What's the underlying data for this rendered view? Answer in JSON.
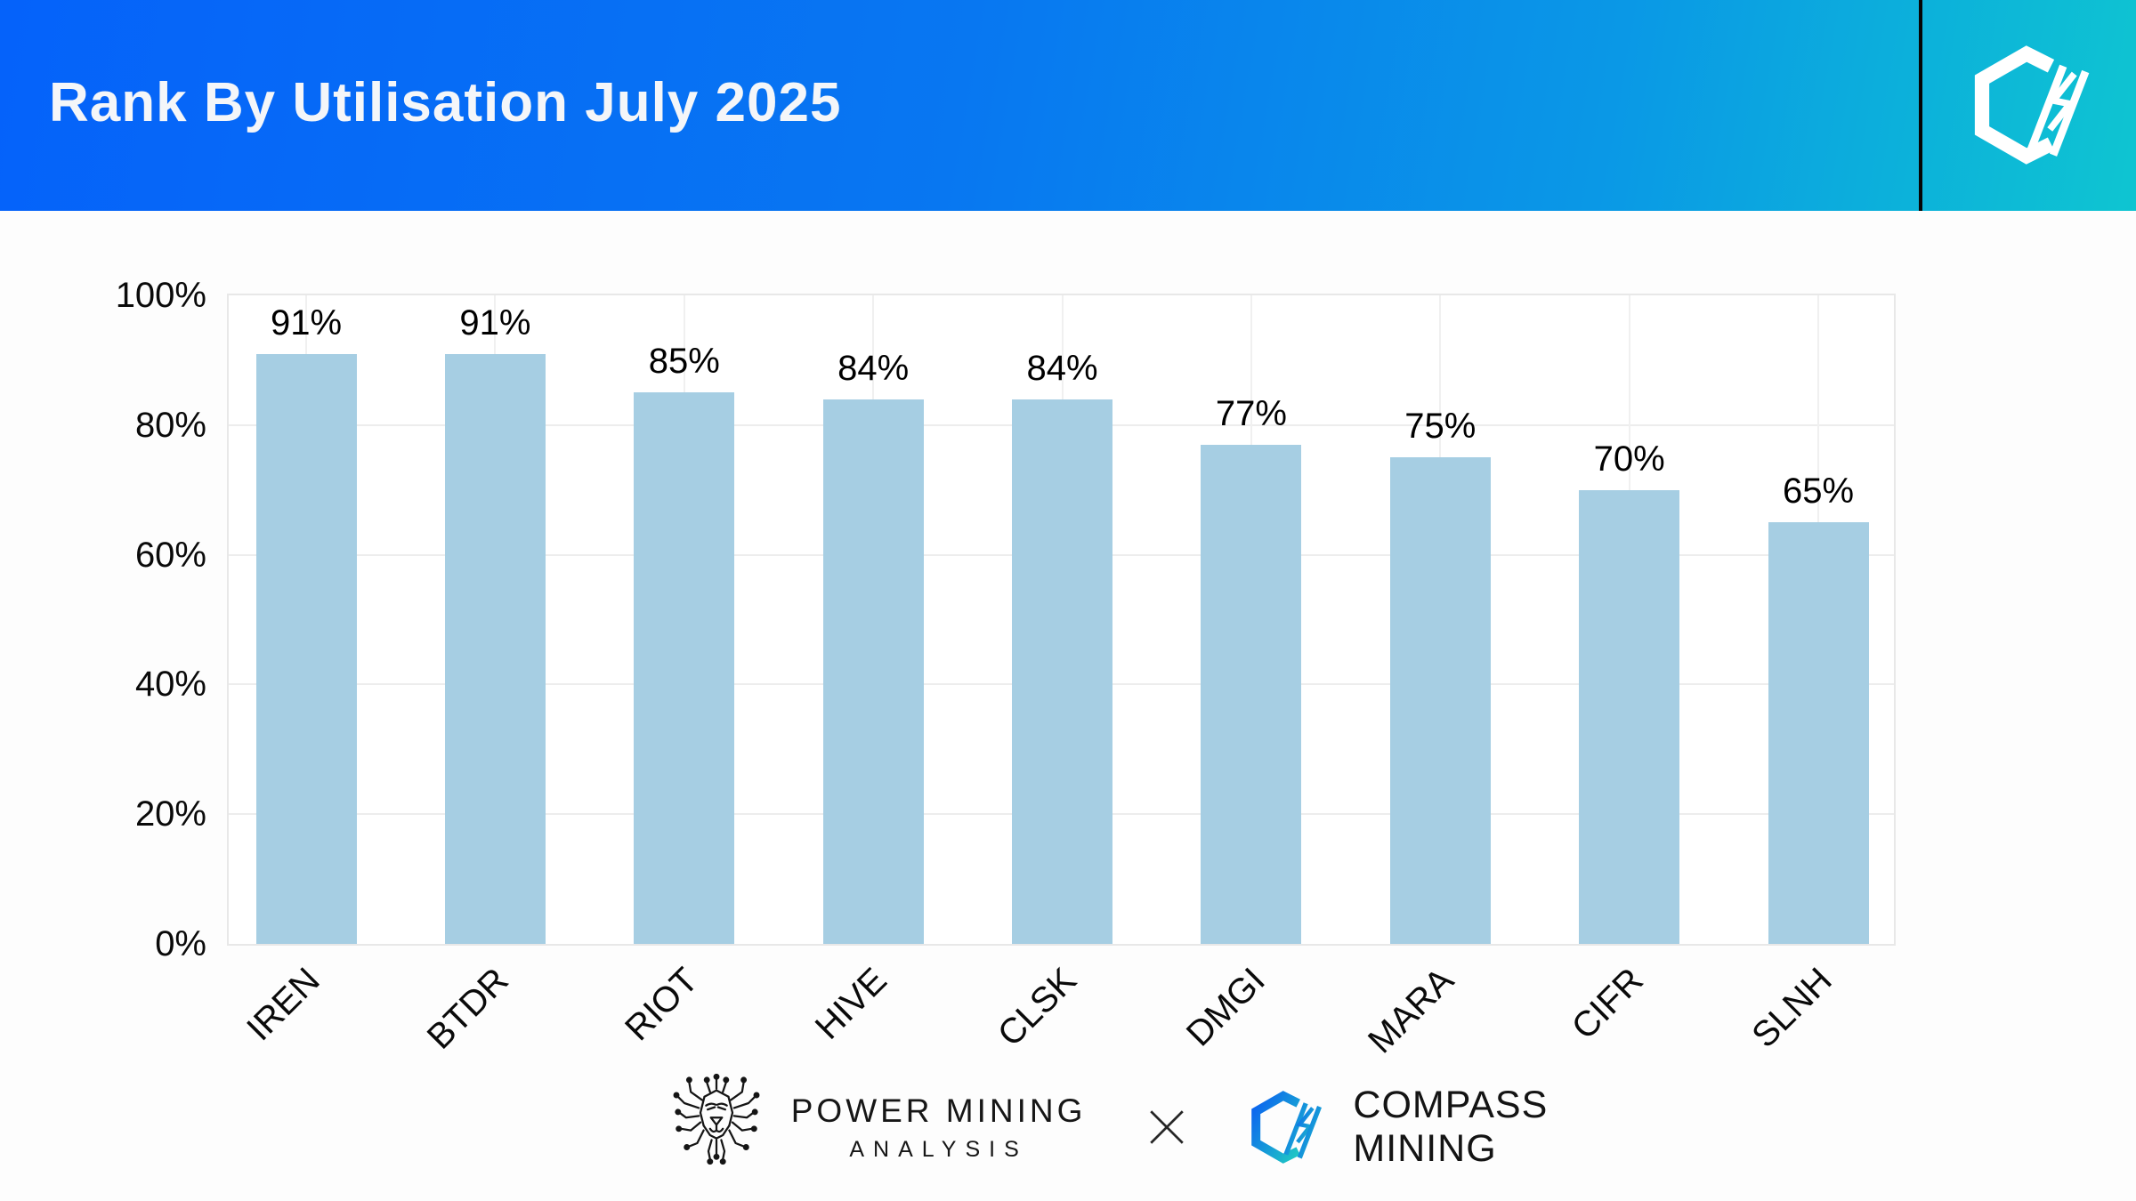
{
  "header": {
    "title": "Rank By Utilisation July 2025"
  },
  "chart_data": {
    "type": "bar",
    "title": "Rank By Utilisation July 2025",
    "categories": [
      "IREN",
      "BTDR",
      "RIOT",
      "HIVE",
      "CLSK",
      "DMGI",
      "MARA",
      "CIFR",
      "SLNH"
    ],
    "values": [
      91,
      91,
      85,
      84,
      84,
      77,
      75,
      70,
      65
    ],
    "value_labels": [
      "91%",
      "91%",
      "85%",
      "84%",
      "84%",
      "77%",
      "75%",
      "70%",
      "65%"
    ],
    "xlabel": "",
    "ylabel": "",
    "ylim": [
      0,
      100
    ],
    "ytick_labels": [
      "100%",
      "80%",
      "60%",
      "40%",
      "20%",
      "0%"
    ],
    "ytick_values": [
      100,
      80,
      60,
      40,
      20,
      0
    ],
    "grid": true,
    "legend": null,
    "bar_color": "#a6cee3",
    "x_tick_rotation_deg": 45
  },
  "footer": {
    "power_mining_line1": "POWER MINING",
    "power_mining_line2": "ANALYSIS",
    "separator": "X",
    "compass_line1": "COMPASS",
    "compass_line2": "MINING"
  },
  "colors": {
    "header_gradient_left": "#0562fa",
    "header_gradient_right": "#0ec5d1",
    "header_title": "#f4f6f9",
    "bar_fill": "#a6cee3",
    "gridline": "#ededed",
    "plot_border": "#e8e8e8",
    "axis_text": "#0a0a0a",
    "divider": "#050505",
    "logo_gradient_start": "#0b5ff2",
    "logo_gradient_end": "#1fcac3"
  },
  "icons": {
    "header_logo": "compass-hexagon-logo-icon",
    "footer_lion": "power-mining-lion-icon",
    "footer_separator": "x-separator-icon",
    "footer_compass": "compass-hexagon-logo-icon"
  }
}
